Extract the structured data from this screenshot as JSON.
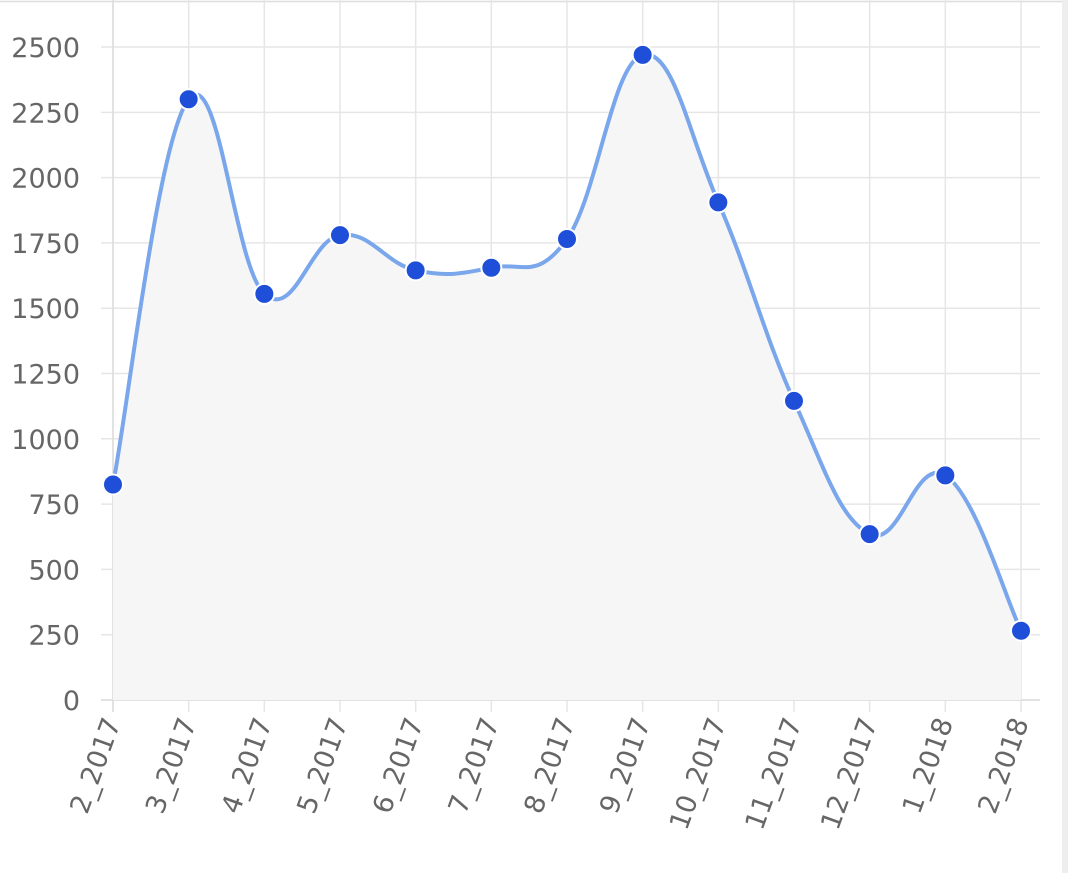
{
  "chart_data": {
    "type": "line",
    "categories": [
      "2_2017",
      "3_2017",
      "4_2017",
      "5_2017",
      "6_2017",
      "7_2017",
      "8_2017",
      "9_2017",
      "10_2017",
      "11_2017",
      "12_2017",
      "1_2018",
      "2_2018"
    ],
    "values": [
      825,
      2300,
      1555,
      1780,
      1645,
      1655,
      1765,
      2470,
      1905,
      1145,
      635,
      860,
      265
    ],
    "color": "#7aa6ec",
    "point_color": "#1f4fd8",
    "fill_color": "#f6f6f7",
    "ylim": [
      0,
      2680
    ],
    "yticks": [
      0,
      250,
      500,
      750,
      1000,
      1250,
      1500,
      1750,
      2000,
      2250,
      2500
    ],
    "grid": true
  }
}
